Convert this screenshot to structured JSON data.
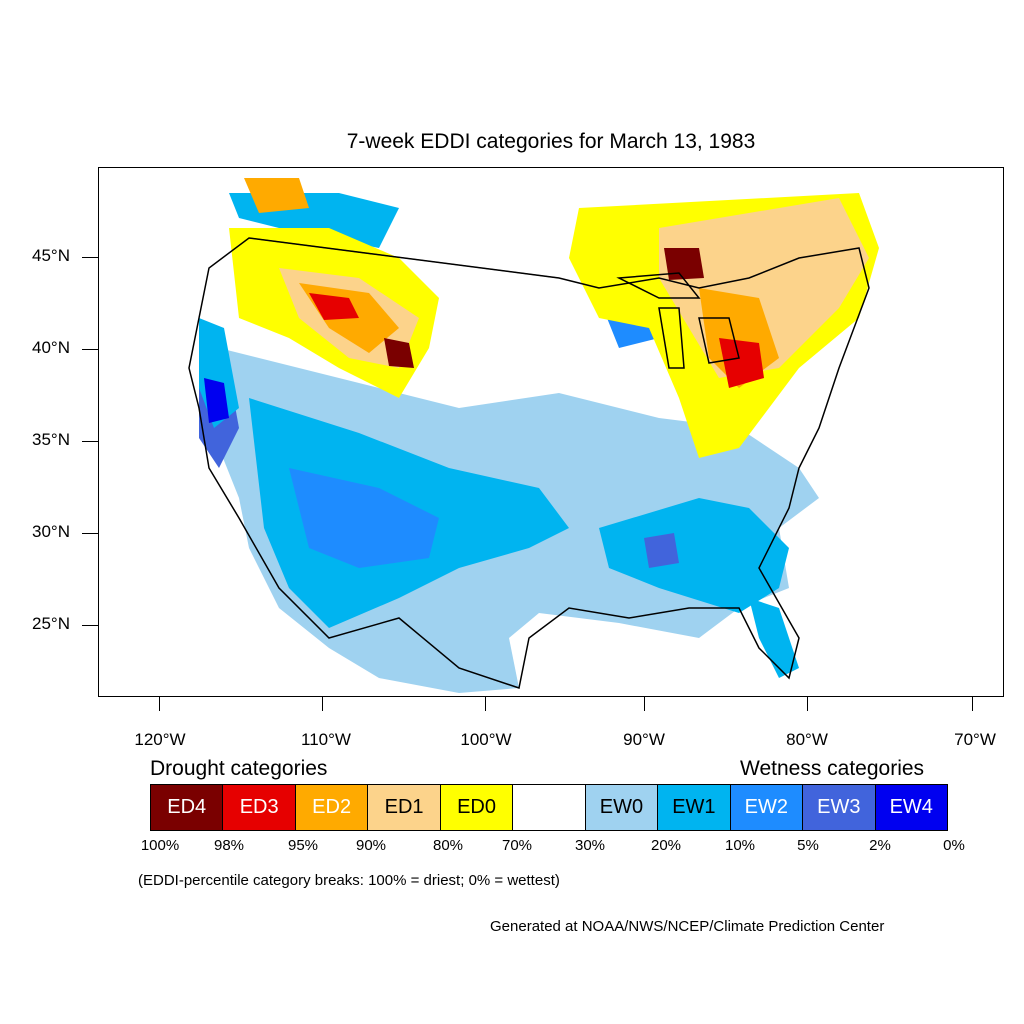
{
  "title": "7-week EDDI categories for March 13, 1983",
  "y_axis_labels": [
    "45°N",
    "40°N",
    "35°N",
    "30°N",
    "25°N"
  ],
  "x_axis_labels": [
    "120°W",
    "110°W",
    "100°W",
    "90°W",
    "80°W",
    "70°W"
  ],
  "legend": {
    "drought_heading": "Drought categories",
    "wetness_heading": "Wetness categories",
    "categories": [
      {
        "label": "ED4",
        "color": "#7a0000",
        "text_color": "#ffffff"
      },
      {
        "label": "ED3",
        "color": "#e60000",
        "text_color": "#ffffff"
      },
      {
        "label": "ED2",
        "color": "#ffaa00",
        "text_color": "#ffffff"
      },
      {
        "label": "ED1",
        "color": "#fcd38b",
        "text_color": "#000000"
      },
      {
        "label": "ED0",
        "color": "#ffff00",
        "text_color": "#000000"
      },
      {
        "label": "",
        "color": "#ffffff",
        "text_color": "#000000"
      },
      {
        "label": "EW0",
        "color": "#9fd2f0",
        "text_color": "#000000"
      },
      {
        "label": "EW1",
        "color": "#00b4f0",
        "text_color": "#000000"
      },
      {
        "label": "EW2",
        "color": "#1e8cff",
        "text_color": "#ffffff"
      },
      {
        "label": "EW3",
        "color": "#4164dc",
        "text_color": "#ffffff"
      },
      {
        "label": "EW4",
        "color": "#0000f0",
        "text_color": "#ffffff"
      }
    ],
    "percentiles": [
      "100%",
      "98%",
      "95%",
      "90%",
      "80%",
      "70%",
      "30%",
      "20%",
      "10%",
      "5%",
      "2%",
      "0%"
    ]
  },
  "note": "(EDDI-percentile category breaks: 100% = driest; 0% = wettest)",
  "credit": "Generated at NOAA/NWS/NCEP/Climate Prediction Center"
}
